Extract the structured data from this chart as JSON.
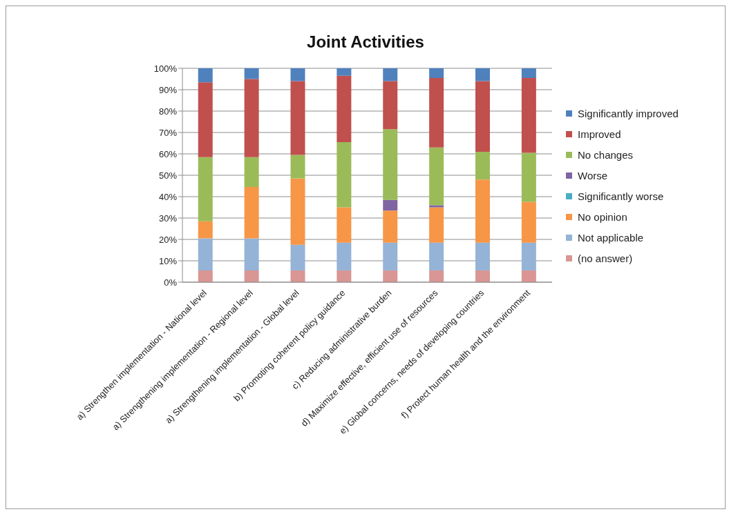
{
  "chart_data": {
    "type": "bar",
    "title": "Joint Activities",
    "stacked": true,
    "categories": [
      "a) Strengthen implementation - National level",
      "a) Strengthening implementation - Regional level",
      "a) Strengthening implementation - Global level",
      "b) Promoting coherent policy guidance",
      "c) Reducing administrative burden",
      "d) Maximize effective, efficient use of resources",
      "e) Global concerns, needs of developing countries",
      "f) Protect human health and the environment"
    ],
    "series": [
      {
        "name": "(no answer)",
        "color": "#d99694",
        "values": [
          5.5,
          5.5,
          5.5,
          5.5,
          5.5,
          5.5,
          5.5,
          5.5
        ]
      },
      {
        "name": "Not applicable",
        "color": "#95b3d7",
        "values": [
          15,
          15,
          12,
          13,
          13,
          13,
          13,
          13
        ]
      },
      {
        "name": "No opinion",
        "color": "#f79646",
        "values": [
          8,
          24,
          31,
          16.5,
          15,
          16.5,
          29.5,
          19
        ]
      },
      {
        "name": "Significantly worse",
        "color": "#4bacc6",
        "values": [
          0,
          0,
          0,
          0,
          0,
          0,
          0,
          0
        ]
      },
      {
        "name": "Worse",
        "color": "#8064a2",
        "values": [
          0,
          0,
          0,
          0,
          5,
          1,
          0,
          0
        ]
      },
      {
        "name": "No changes",
        "color": "#9bbb59",
        "values": [
          30,
          14,
          11,
          30.5,
          33,
          27,
          13,
          23
        ]
      },
      {
        "name": "Improved",
        "color": "#c0504d",
        "values": [
          35,
          36.5,
          34.5,
          31,
          22.5,
          32.5,
          33,
          35
        ]
      },
      {
        "name": "Significantly improved",
        "color": "#4f81bd",
        "values": [
          6.5,
          5,
          6,
          3.5,
          6,
          4.5,
          6,
          4.5
        ]
      }
    ],
    "ylim": [
      0,
      100
    ],
    "yticks": [
      {
        "value": 0,
        "label": "0%"
      },
      {
        "value": 10,
        "label": "10%"
      },
      {
        "value": 20,
        "label": "20%"
      },
      {
        "value": 30,
        "label": "30%"
      },
      {
        "value": 40,
        "label": "40%"
      },
      {
        "value": 50,
        "label": "50%"
      },
      {
        "value": 60,
        "label": "60%"
      },
      {
        "value": 70,
        "label": "70%"
      },
      {
        "value": 80,
        "label": "80%"
      },
      {
        "value": 90,
        "label": "90%"
      },
      {
        "value": 100,
        "label": "100%"
      }
    ],
    "grid": "y",
    "legend": "right"
  }
}
